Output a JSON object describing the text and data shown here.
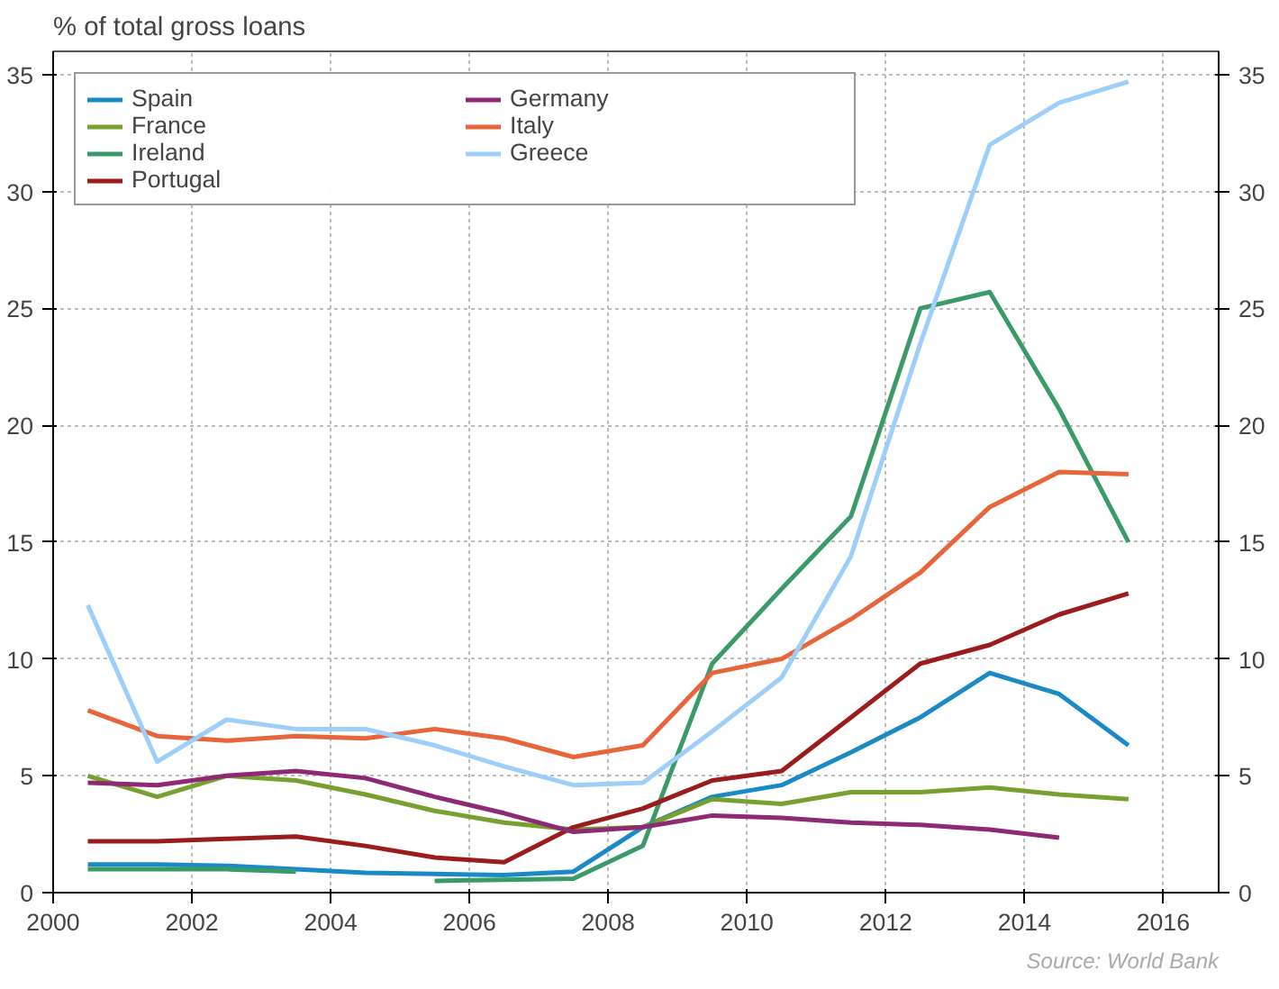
{
  "chart_data": {
    "type": "line",
    "title": "% of total gross loans",
    "x": [
      2000.5,
      2001.5,
      2002.5,
      2003.5,
      2004.5,
      2005.5,
      2006.5,
      2007.5,
      2008.5,
      2009.5,
      2010.5,
      2011.5,
      2012.5,
      2013.5,
      2014.5,
      2015.5
    ],
    "series": [
      {
        "name": "Spain",
        "color": "#1a8ac6",
        "values": [
          1.2,
          1.2,
          1.15,
          1.0,
          0.85,
          0.8,
          0.75,
          0.9,
          2.8,
          4.1,
          4.6,
          6.0,
          7.5,
          9.4,
          8.5,
          6.3
        ]
      },
      {
        "name": "France",
        "color": "#77a02e",
        "values": [
          5.0,
          4.1,
          5.0,
          4.8,
          4.2,
          3.5,
          3.0,
          2.7,
          2.8,
          4.0,
          3.8,
          4.3,
          4.3,
          4.5,
          4.2,
          4.0
        ]
      },
      {
        "name": "Ireland",
        "color": "#3a9a68",
        "values": [
          1.0,
          1.0,
          1.0,
          0.9,
          null,
          0.5,
          0.55,
          0.6,
          2.0,
          9.8,
          13.0,
          16.1,
          25.0,
          25.7,
          20.7,
          15.0
        ]
      },
      {
        "name": "Portugal",
        "color": "#9b1c1c",
        "values": [
          2.2,
          2.2,
          2.3,
          2.4,
          2.0,
          1.5,
          1.3,
          2.8,
          3.6,
          4.8,
          5.2,
          7.5,
          9.8,
          10.6,
          11.9,
          12.8
        ]
      },
      {
        "name": "Germany",
        "color": "#8e2a74",
        "values": [
          4.7,
          4.6,
          5.0,
          5.2,
          4.9,
          4.1,
          3.4,
          2.6,
          2.8,
          3.3,
          3.2,
          3.0,
          2.9,
          2.7,
          2.35,
          null
        ]
      },
      {
        "name": "Italy",
        "color": "#e8643a",
        "values": [
          7.8,
          6.7,
          6.5,
          6.7,
          6.6,
          7.0,
          6.6,
          5.8,
          6.3,
          9.4,
          10.0,
          11.7,
          13.7,
          16.5,
          18.0,
          17.9
        ]
      },
      {
        "name": "Greece",
        "color": "#9dcffa",
        "values": [
          12.3,
          5.6,
          7.4,
          7.0,
          7.0,
          6.3,
          5.4,
          4.6,
          4.7,
          6.9,
          9.2,
          14.4,
          23.5,
          32.0,
          33.8,
          34.7
        ]
      }
    ],
    "xlim": [
      2000,
      2016.8
    ],
    "xticks": [
      2000,
      2002,
      2004,
      2006,
      2008,
      2010,
      2012,
      2014,
      2016
    ],
    "ylim": [
      0,
      36
    ],
    "yticks": [
      0,
      5,
      10,
      15,
      20,
      25,
      30,
      35
    ],
    "y2lim": [
      0,
      36
    ],
    "y2ticks": [
      0,
      5,
      10,
      15,
      20,
      25,
      30,
      35
    ],
    "grid": true,
    "legend": "top left",
    "line_style": "solid",
    "annotations": [
      "Source: World Bank"
    ]
  }
}
